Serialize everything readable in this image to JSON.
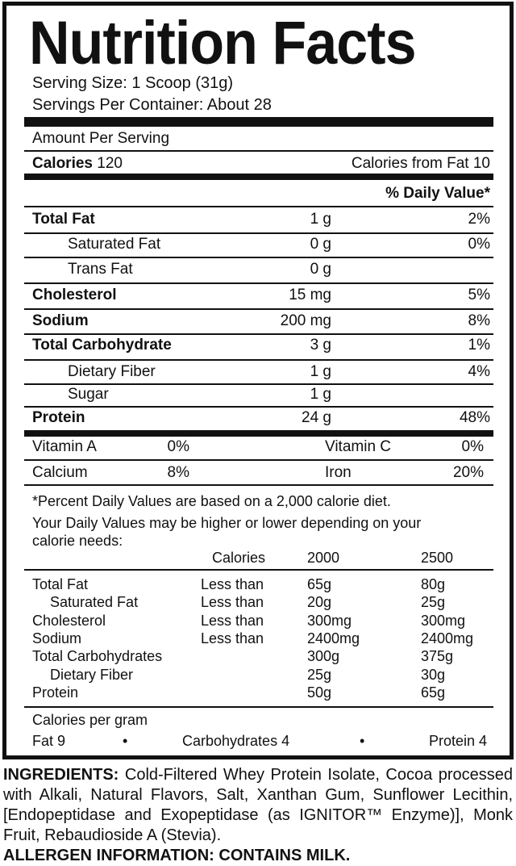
{
  "title": "Nutrition Facts",
  "serving_size": "Serving Size: 1 Scoop (31g)",
  "servings_per_container": "Servings Per Container: About 28",
  "amount_per_serving": "Amount Per Serving",
  "calories_label": "Calories",
  "calories_value": "120",
  "calories_from_fat": "Calories from Fat 10",
  "daily_value_header": "% Daily Value*",
  "nutrients": [
    {
      "name": "Total Fat",
      "amount": "1 g",
      "dv": "2%"
    },
    {
      "name": "Saturated Fat",
      "amount": "0 g",
      "dv": "0%"
    },
    {
      "name": "Trans Fat",
      "amount": "0 g",
      "dv": ""
    },
    {
      "name": "Cholesterol",
      "amount": "15 mg",
      "dv": "5%"
    },
    {
      "name": "Sodium",
      "amount": "200 mg",
      "dv": "8%"
    },
    {
      "name": "Total Carbohydrate",
      "amount": "3 g",
      "dv": "1%"
    },
    {
      "name": "Dietary Fiber",
      "amount": "1 g",
      "dv": "4%"
    },
    {
      "name": "Sugar",
      "amount": "1 g",
      "dv": ""
    },
    {
      "name": "Protein",
      "amount": "24 g",
      "dv": "48%"
    }
  ],
  "vitamins": [
    {
      "name": "Vitamin A",
      "dv": "0%"
    },
    {
      "name": "Vitamin C",
      "dv": "0%"
    },
    {
      "name": "Calcium",
      "dv": "8%"
    },
    {
      "name": "Iron",
      "dv": "20%"
    }
  ],
  "footnote1": "*Percent Daily Values are based on a 2,000 calorie diet.",
  "footnote2a": "Your Daily Values may be higher or lower depending on your",
  "footnote2b": "calorie needs:",
  "dv_table": {
    "headers": [
      "Calories",
      "2000",
      "2500"
    ],
    "rows": [
      {
        "name": "Total Fat",
        "limit": "Less than",
        "c2000": "65g",
        "c2500": "80g"
      },
      {
        "name": "Saturated Fat",
        "limit": "Less than",
        "c2000": "20g",
        "c2500": "25g"
      },
      {
        "name": "Cholesterol",
        "limit": "Less than",
        "c2000": "300mg",
        "c2500": "300mg"
      },
      {
        "name": "Sodium",
        "limit": "Less than",
        "c2000": "2400mg",
        "c2500": "2400mg"
      },
      {
        "name": "Total Carbohydrates",
        "limit": "",
        "c2000": "300g",
        "c2500": "375g"
      },
      {
        "name": "Dietary Fiber",
        "limit": "",
        "c2000": "25g",
        "c2500": "30g"
      },
      {
        "name": "Protein",
        "limit": "",
        "c2000": "50g",
        "c2500": "65g"
      }
    ]
  },
  "calories_per_gram": "Calories per gram",
  "cpg": {
    "fat": "Fat 9",
    "bullet": "•",
    "carbs": "Carbohydrates 4",
    "protein": "Protein 4"
  },
  "ingredients_label": "INGREDIENTS:",
  "ingredients_text": "Cold-Filtered Whey Protein Isolate, Cocoa processed with Alkali, Natural Flavors, Salt, Xanthan Gum, Sunflower Lecithin, [Endopeptidase and Exopeptidase (as IGNITOR™ Enzyme)], Monk Fruit, Rebaudioside A (Stevia).",
  "allergen": "ALLERGEN INFORMATION: CONTAINS MILK."
}
